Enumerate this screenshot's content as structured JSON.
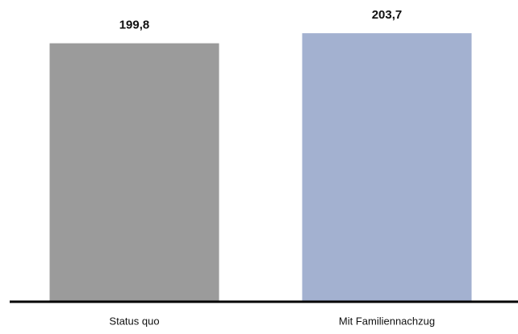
{
  "chart_data": {
    "type": "bar",
    "categories": [
      "Status quo",
      "Mit Familiennachzug"
    ],
    "values": [
      199.8,
      203.7
    ],
    "value_labels": [
      "199,8",
      "203,7"
    ],
    "colors": [
      "#9b9b9b",
      "#a3b1d0"
    ],
    "ylim": [
      100,
      210
    ]
  }
}
